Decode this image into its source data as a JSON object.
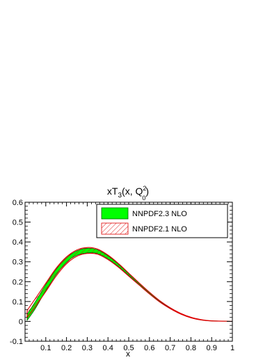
{
  "chart_data": {
    "type": "area",
    "title": {
      "base": "xT",
      "sub1": "3",
      "mid": "(x, Q",
      "sup": "2",
      "sub2": "0",
      "end": ")"
    },
    "xlabel": "x",
    "ylabel": "",
    "xlim": [
      0.0,
      1.0
    ],
    "ylim": [
      -0.1,
      0.6
    ],
    "xticks": [
      0.1,
      0.2,
      0.3,
      0.4,
      0.5,
      0.6,
      0.7,
      0.8,
      0.9,
      1
    ],
    "xtick_labels": [
      "0.1",
      "0.2",
      "0.3",
      "0.4",
      "0.5",
      "0.6",
      "0.7",
      "0.8",
      "0.9",
      "1"
    ],
    "yticks": [
      -0.1,
      0,
      0.1,
      0.2,
      0.3,
      0.4,
      0.5,
      0.6
    ],
    "ytick_labels": [
      "-0.1",
      "0",
      "0.1",
      "0.2",
      "0.3",
      "0.4",
      "0.5",
      "0.6"
    ],
    "grid": false,
    "legend_placement": "top-right",
    "series": [
      {
        "name": "NNPDF2.3 NLO",
        "style": "filled-band",
        "color": "#00ff00",
        "edge_color": "#006400",
        "x": [
          0.01,
          0.05,
          0.1,
          0.15,
          0.2,
          0.25,
          0.3,
          0.35,
          0.4,
          0.45,
          0.5,
          0.55,
          0.6,
          0.65,
          0.7,
          0.75,
          0.8,
          0.85,
          0.9,
          0.95,
          1.0
        ],
        "upper": [
          0.035,
          0.1,
          0.185,
          0.262,
          0.32,
          0.355,
          0.368,
          0.36,
          0.33,
          0.288,
          0.24,
          0.192,
          0.145,
          0.103,
          0.068,
          0.04,
          0.02,
          0.008,
          0.003,
          0.0015,
          0.0
        ],
        "lower": [
          0.005,
          0.065,
          0.155,
          0.235,
          0.298,
          0.333,
          0.345,
          0.342,
          0.315,
          0.277,
          0.232,
          0.186,
          0.14,
          0.099,
          0.065,
          0.038,
          0.019,
          0.007,
          0.002,
          0.001,
          0.0
        ]
      },
      {
        "name": "NNPDF2.1 NLO",
        "style": "hatched-band",
        "color": "#dd0000",
        "x": [
          0.01,
          0.05,
          0.1,
          0.15,
          0.2,
          0.25,
          0.3,
          0.35,
          0.4,
          0.45,
          0.5,
          0.55,
          0.6,
          0.65,
          0.7,
          0.75,
          0.8,
          0.85,
          0.9,
          0.95,
          1.0
        ],
        "upper": [
          0.055,
          0.115,
          0.192,
          0.268,
          0.325,
          0.36,
          0.372,
          0.364,
          0.334,
          0.292,
          0.243,
          0.194,
          0.147,
          0.104,
          0.069,
          0.041,
          0.021,
          0.009,
          0.003,
          0.0015,
          0.0
        ],
        "lower": [
          0.02,
          0.075,
          0.15,
          0.228,
          0.29,
          0.328,
          0.342,
          0.338,
          0.311,
          0.273,
          0.228,
          0.183,
          0.138,
          0.097,
          0.064,
          0.037,
          0.018,
          0.007,
          0.002,
          0.001,
          0.0
        ]
      }
    ]
  }
}
